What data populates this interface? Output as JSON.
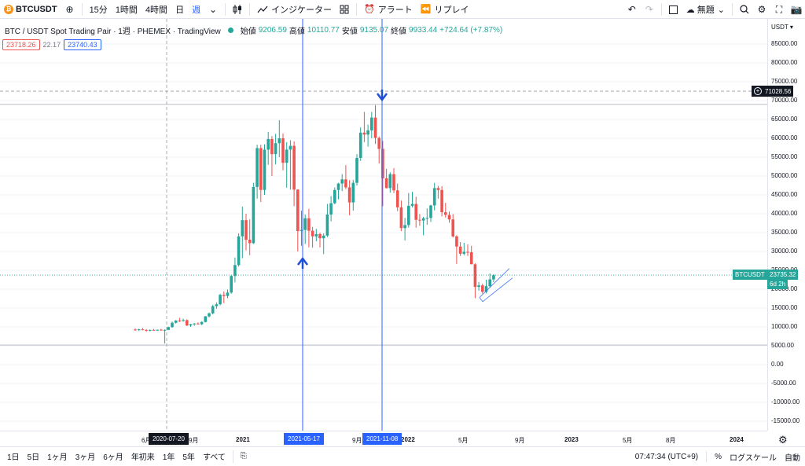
{
  "toolbar": {
    "symbol": "BTCUSDT",
    "symbol_badge": "₿",
    "intervals": [
      "15分",
      "1時間",
      "4時間",
      "日",
      "週"
    ],
    "indicators_label": "インジケーター",
    "alert_label": "アラート",
    "replay_label": "リプレイ",
    "unnamed_label": "無題"
  },
  "legend": {
    "title": "BTC / USDT Spot Trading Pair · 1週 · PHEMEX · TradingView",
    "open_label": "始値",
    "open": "9206.59",
    "high_label": "高値",
    "high": "10110.77",
    "low_label": "安値",
    "low": "9135.07",
    "close_label": "終値",
    "close": "9933.44",
    "change": "+724.64 (+7.87%)"
  },
  "pills": {
    "sell": "23718.26",
    "spread": "22.17",
    "buy": "23740.43"
  },
  "yaxis": {
    "currency": "USDT",
    "labels": [
      "85000.00",
      "80000.00",
      "75000.00",
      "70000.00",
      "65000.00",
      "60000.00",
      "55000.00",
      "50000.00",
      "45000.00",
      "40000.00",
      "35000.00",
      "30000.00",
      "25000.00",
      "20000.00",
      "15000.00",
      "10000.00",
      "5000.00",
      "0.00",
      "-5000.00",
      "-10000.00",
      "-15000.00"
    ],
    "crosshair_price": "71028.56",
    "current_symbol": "BTCUSDT",
    "current_price": "23735.32",
    "countdown": "6d 2h"
  },
  "xaxis": {
    "labels": [
      {
        "text": "6月"
      },
      {
        "text": "9月"
      },
      {
        "text": "2021"
      },
      {
        "text": "5月"
      },
      {
        "text": "9月"
      },
      {
        "text": "2022"
      },
      {
        "text": "5月"
      },
      {
        "text": "9月"
      },
      {
        "text": "2023"
      },
      {
        "text": "5月"
      },
      {
        "text": "8月"
      },
      {
        "text": "2024"
      }
    ],
    "cursor_date": "2020-07-20",
    "marker1_date": "2021-05-17",
    "marker2_date": "2021-11-08"
  },
  "bottombar": {
    "ranges": [
      "1日",
      "5日",
      "1ヶ月",
      "3ヶ月",
      "6ヶ月",
      "年初来",
      "1年",
      "5年",
      "すべて"
    ],
    "time": "07:47:34 (UTC+9)",
    "percent": "%",
    "log": "ログスケール",
    "auto": "自動"
  },
  "colors": {
    "up": "#26a69a",
    "down": "#ef5350",
    "accent": "#2962ff"
  },
  "chart_data": {
    "type": "candlestick",
    "title": "BTC / USDT Spot Trading Pair · 1週 · PHEMEX",
    "ylabel": "USDT",
    "ylim": [
      -17000,
      88000
    ],
    "candles": [
      {
        "o": 9300,
        "h": 9600,
        "l": 9000,
        "c": 9150
      },
      {
        "o": 9150,
        "h": 9500,
        "l": 8900,
        "c": 9350
      },
      {
        "o": 9350,
        "h": 9700,
        "l": 9100,
        "c": 9200
      },
      {
        "o": 9200,
        "h": 9400,
        "l": 8700,
        "c": 9000
      },
      {
        "o": 9000,
        "h": 9300,
        "l": 8800,
        "c": 9200
      },
      {
        "o": 9200,
        "h": 9450,
        "l": 9000,
        "c": 9100
      },
      {
        "o": 9100,
        "h": 9300,
        "l": 8900,
        "c": 9250
      },
      {
        "o": 9250,
        "h": 9500,
        "l": 9000,
        "c": 9150
      },
      {
        "o": 9150,
        "h": 9350,
        "l": 5600,
        "c": 9206
      },
      {
        "o": 9206,
        "h": 10110,
        "l": 9135,
        "c": 9933
      },
      {
        "o": 9933,
        "h": 11400,
        "l": 9800,
        "c": 11100
      },
      {
        "o": 11100,
        "h": 11800,
        "l": 10900,
        "c": 11700
      },
      {
        "o": 11700,
        "h": 12400,
        "l": 11300,
        "c": 11600
      },
      {
        "o": 11600,
        "h": 12200,
        "l": 11400,
        "c": 11800
      },
      {
        "o": 11800,
        "h": 12000,
        "l": 10200,
        "c": 10400
      },
      {
        "o": 10400,
        "h": 10800,
        "l": 10000,
        "c": 10700
      },
      {
        "o": 10700,
        "h": 11000,
        "l": 10300,
        "c": 10900
      },
      {
        "o": 10900,
        "h": 11200,
        "l": 10600,
        "c": 10700
      },
      {
        "o": 10700,
        "h": 11500,
        "l": 10500,
        "c": 11300
      },
      {
        "o": 11300,
        "h": 12900,
        "l": 11200,
        "c": 12800
      },
      {
        "o": 12800,
        "h": 13800,
        "l": 12500,
        "c": 13600
      },
      {
        "o": 13600,
        "h": 15900,
        "l": 13300,
        "c": 15500
      },
      {
        "o": 15500,
        "h": 16500,
        "l": 14800,
        "c": 16000
      },
      {
        "o": 16000,
        "h": 18800,
        "l": 15700,
        "c": 18500
      },
      {
        "o": 18500,
        "h": 19400,
        "l": 16300,
        "c": 18200
      },
      {
        "o": 18200,
        "h": 19900,
        "l": 17600,
        "c": 19100
      },
      {
        "o": 19100,
        "h": 23800,
        "l": 18800,
        "c": 23500
      },
      {
        "o": 23500,
        "h": 28400,
        "l": 21800,
        "c": 26400
      },
      {
        "o": 26400,
        "h": 34800,
        "l": 26000,
        "c": 34000
      },
      {
        "o": 34000,
        "h": 41900,
        "l": 28200,
        "c": 38300
      },
      {
        "o": 38300,
        "h": 40000,
        "l": 30300,
        "c": 33100
      },
      {
        "o": 33100,
        "h": 38500,
        "l": 29000,
        "c": 32200
      },
      {
        "o": 32200,
        "h": 48200,
        "l": 32000,
        "c": 47100
      },
      {
        "o": 47100,
        "h": 58300,
        "l": 44000,
        "c": 57400
      },
      {
        "o": 57400,
        "h": 58300,
        "l": 43100,
        "c": 46300
      },
      {
        "o": 46300,
        "h": 58400,
        "l": 45000,
        "c": 57000
      },
      {
        "o": 57000,
        "h": 61700,
        "l": 53000,
        "c": 59800
      },
      {
        "o": 59800,
        "h": 60600,
        "l": 50000,
        "c": 55800
      },
      {
        "o": 55800,
        "h": 61200,
        "l": 53100,
        "c": 58700
      },
      {
        "o": 58700,
        "h": 64800,
        "l": 55000,
        "c": 60000
      },
      {
        "o": 60000,
        "h": 61300,
        "l": 51500,
        "c": 53500
      },
      {
        "o": 53500,
        "h": 59000,
        "l": 46900,
        "c": 57000
      },
      {
        "o": 57000,
        "h": 59500,
        "l": 46400,
        "c": 58000
      },
      {
        "o": 58000,
        "h": 59200,
        "l": 42000,
        "c": 46400
      },
      {
        "o": 46400,
        "h": 46500,
        "l": 30000,
        "c": 35400
      },
      {
        "o": 35400,
        "h": 40800,
        "l": 31500,
        "c": 35700
      },
      {
        "o": 35700,
        "h": 39800,
        "l": 32000,
        "c": 38800
      },
      {
        "o": 38800,
        "h": 41300,
        "l": 31100,
        "c": 35500
      },
      {
        "o": 35500,
        "h": 36500,
        "l": 31000,
        "c": 34000
      },
      {
        "o": 34000,
        "h": 36000,
        "l": 32700,
        "c": 34600
      },
      {
        "o": 34600,
        "h": 35000,
        "l": 31100,
        "c": 33500
      },
      {
        "o": 33500,
        "h": 34800,
        "l": 29300,
        "c": 34200
      },
      {
        "o": 34200,
        "h": 42600,
        "l": 33800,
        "c": 39800
      },
      {
        "o": 39800,
        "h": 44700,
        "l": 38000,
        "c": 42800
      },
      {
        "o": 42800,
        "h": 47000,
        "l": 42500,
        "c": 46300
      },
      {
        "o": 46300,
        "h": 48200,
        "l": 43800,
        "c": 48000
      },
      {
        "o": 48000,
        "h": 50500,
        "l": 46000,
        "c": 49100
      },
      {
        "o": 49100,
        "h": 52900,
        "l": 46500,
        "c": 47000
      },
      {
        "o": 47000,
        "h": 48900,
        "l": 39600,
        "c": 43000
      },
      {
        "o": 43000,
        "h": 49000,
        "l": 40800,
        "c": 48200
      },
      {
        "o": 48200,
        "h": 55800,
        "l": 47500,
        "c": 54800
      },
      {
        "o": 54800,
        "h": 62900,
        "l": 54000,
        "c": 61500
      },
      {
        "o": 61500,
        "h": 67000,
        "l": 59000,
        "c": 61000
      },
      {
        "o": 61000,
        "h": 63600,
        "l": 57800,
        "c": 62100
      },
      {
        "o": 62100,
        "h": 67000,
        "l": 60000,
        "c": 65500
      },
      {
        "o": 65500,
        "h": 68800,
        "l": 58500,
        "c": 60100
      },
      {
        "o": 60100,
        "h": 60500,
        "l": 53300,
        "c": 57200
      },
      {
        "o": 57200,
        "h": 59300,
        "l": 42000,
        "c": 49400
      },
      {
        "o": 49400,
        "h": 51900,
        "l": 46700,
        "c": 46800
      },
      {
        "o": 46800,
        "h": 51000,
        "l": 45600,
        "c": 50500
      },
      {
        "o": 50500,
        "h": 52100,
        "l": 45500,
        "c": 46200
      },
      {
        "o": 46200,
        "h": 48000,
        "l": 40700,
        "c": 41700
      },
      {
        "o": 41700,
        "h": 43500,
        "l": 35400,
        "c": 36200
      },
      {
        "o": 36200,
        "h": 38900,
        "l": 32900,
        "c": 37000
      },
      {
        "o": 37000,
        "h": 45500,
        "l": 36300,
        "c": 42100
      },
      {
        "o": 42100,
        "h": 45800,
        "l": 41700,
        "c": 42600
      },
      {
        "o": 42600,
        "h": 44500,
        "l": 36300,
        "c": 38400
      },
      {
        "o": 38400,
        "h": 39900,
        "l": 36800,
        "c": 38200
      },
      {
        "o": 38200,
        "h": 39200,
        "l": 34300,
        "c": 38800
      },
      {
        "o": 38800,
        "h": 41400,
        "l": 37100,
        "c": 38900
      },
      {
        "o": 38900,
        "h": 42400,
        "l": 37800,
        "c": 42200
      },
      {
        "o": 42200,
        "h": 48200,
        "l": 40900,
        "c": 46800
      },
      {
        "o": 46800,
        "h": 47400,
        "l": 44000,
        "c": 46300
      },
      {
        "o": 46300,
        "h": 47300,
        "l": 39300,
        "c": 40400
      },
      {
        "o": 40400,
        "h": 42900,
        "l": 39000,
        "c": 39700
      },
      {
        "o": 39700,
        "h": 40600,
        "l": 37600,
        "c": 38500
      },
      {
        "o": 38500,
        "h": 39900,
        "l": 33700,
        "c": 34000
      },
      {
        "o": 34000,
        "h": 34300,
        "l": 26700,
        "c": 31300
      },
      {
        "o": 31300,
        "h": 32500,
        "l": 28800,
        "c": 29400
      },
      {
        "o": 29400,
        "h": 32300,
        "l": 29000,
        "c": 29900
      },
      {
        "o": 29900,
        "h": 31900,
        "l": 28800,
        "c": 29800
      },
      {
        "o": 29800,
        "h": 31500,
        "l": 26800,
        "c": 26600
      },
      {
        "o": 26600,
        "h": 26900,
        "l": 17600,
        "c": 20600
      },
      {
        "o": 20600,
        "h": 21900,
        "l": 19600,
        "c": 21000
      },
      {
        "o": 21000,
        "h": 21500,
        "l": 18800,
        "c": 19300
      },
      {
        "o": 19300,
        "h": 22500,
        "l": 18900,
        "c": 20800
      },
      {
        "o": 20800,
        "h": 24200,
        "l": 20500,
        "c": 22600
      },
      {
        "o": 22600,
        "h": 24000,
        "l": 21900,
        "c": 23700
      }
    ]
  }
}
